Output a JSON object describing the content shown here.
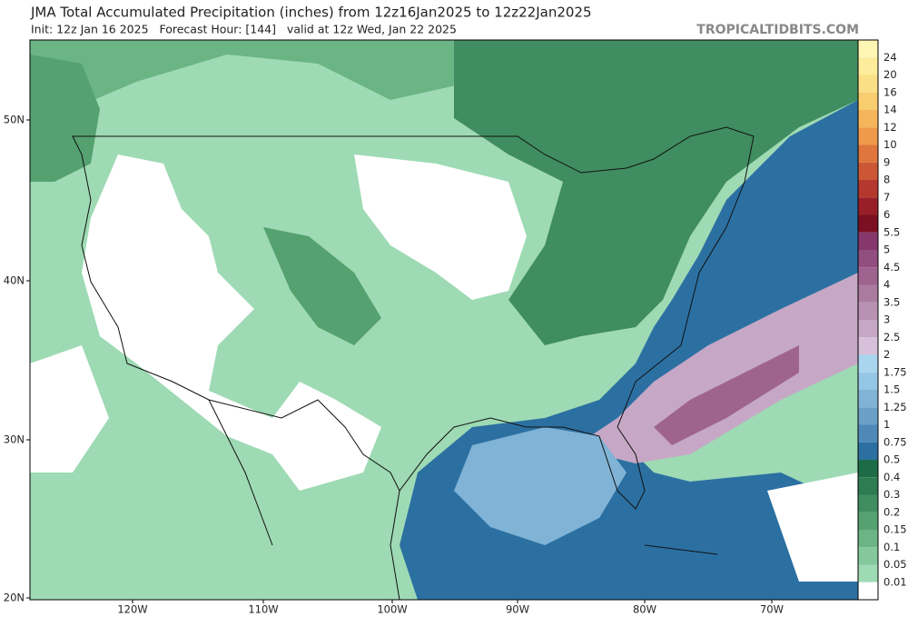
{
  "header": {
    "title": "JMA Total Accumulated Precipitation (inches) from 12z16Jan2025 to 12z22Jan2025",
    "subtitle": "Init: 12z Jan 16 2025   Forecast Hour: [144]   valid at 12z Wed, Jan 22 2025",
    "brand": "TROPICALTIDBITS.COM"
  },
  "map": {
    "lat_labels": [
      "50N",
      "40N",
      "30N",
      "20N"
    ],
    "lon_labels": [
      "120W",
      "110W",
      "100W",
      "90W",
      "80W",
      "70W"
    ]
  },
  "legend": {
    "cap_color": "#fdf6b4",
    "levels": [
      {
        "label": "24",
        "color": "#fcec9c"
      },
      {
        "label": "20",
        "color": "#fadf86"
      },
      {
        "label": "16",
        "color": "#f8cd70"
      },
      {
        "label": "14",
        "color": "#f5b55a"
      },
      {
        "label": "12",
        "color": "#ef9a4a"
      },
      {
        "label": "10",
        "color": "#df763e"
      },
      {
        "label": "9",
        "color": "#cc5736"
      },
      {
        "label": "8",
        "color": "#b5382e"
      },
      {
        "label": "7",
        "color": "#981f27"
      },
      {
        "label": "6",
        "color": "#7a1022"
      },
      {
        "label": "5.5",
        "color": "#86376c"
      },
      {
        "label": "5",
        "color": "#924e7f"
      },
      {
        "label": "4.5",
        "color": "#9e648f"
      },
      {
        "label": "4",
        "color": "#aa7a9f"
      },
      {
        "label": "3.5",
        "color": "#b891b3"
      },
      {
        "label": "3",
        "color": "#c6a8c6"
      },
      {
        "label": "2.5",
        "color": "#d6c0da"
      },
      {
        "label": "2",
        "color": "#a9d5ee"
      },
      {
        "label": "1.75",
        "color": "#96c6e5"
      },
      {
        "label": "1.5",
        "color": "#80b3d6"
      },
      {
        "label": "1.25",
        "color": "#6a9fc8"
      },
      {
        "label": "1",
        "color": "#4e89b8"
      },
      {
        "label": "0.75",
        "color": "#2c70a2"
      },
      {
        "label": "0.5",
        "color": "#1d6c47"
      },
      {
        "label": "0.4",
        "color": "#2d7c52"
      },
      {
        "label": "0.3",
        "color": "#3f8d60"
      },
      {
        "label": "0.2",
        "color": "#55a170"
      },
      {
        "label": "0.15",
        "color": "#6bb585"
      },
      {
        "label": "0.1",
        "color": "#84c89c"
      },
      {
        "label": "0.05",
        "color": "#9edab4"
      },
      {
        "label": "0.01",
        "color": "#ffffff"
      }
    ]
  }
}
